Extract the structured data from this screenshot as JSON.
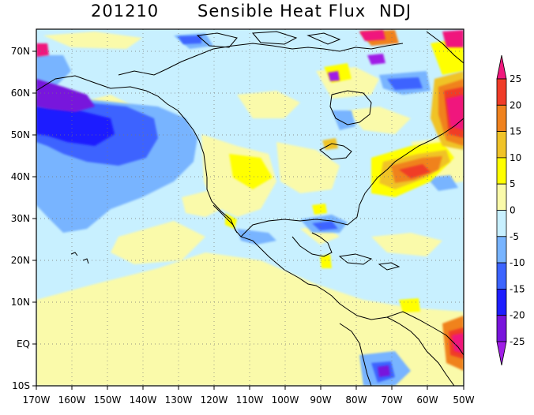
{
  "title": {
    "date": "201210",
    "variable": "Sensible Heat Flux",
    "season": "NDJ"
  },
  "map": {
    "region": "North and Central America with eastern Pacific and western Atlantic",
    "lon_range": [
      -170,
      -50
    ],
    "lat_range": [
      -10,
      75
    ],
    "lon_ticks": [
      "170W",
      "160W",
      "150W",
      "140W",
      "130W",
      "120W",
      "110W",
      "100W",
      "90W",
      "80W",
      "70W",
      "60W",
      "50W"
    ],
    "lat_ticks": [
      "10S",
      "EQ",
      "10N",
      "20N",
      "30N",
      "40N",
      "50N",
      "60N",
      "70N"
    ],
    "gridlines": "dotted"
  },
  "colorbar": {
    "labels": [
      "25",
      "20",
      "15",
      "10",
      "5",
      "0",
      "-5",
      "-10",
      "-15",
      "-20",
      "-25"
    ],
    "colors": [
      "#f0197d",
      "#f03c28",
      "#f0821e",
      "#f0c328",
      "#ffff00",
      "#fafaaa",
      "#c8f0ff",
      "#78b4ff",
      "#3c64ff",
      "#1e1eff",
      "#7814dc",
      "#a01ee6"
    ]
  }
}
